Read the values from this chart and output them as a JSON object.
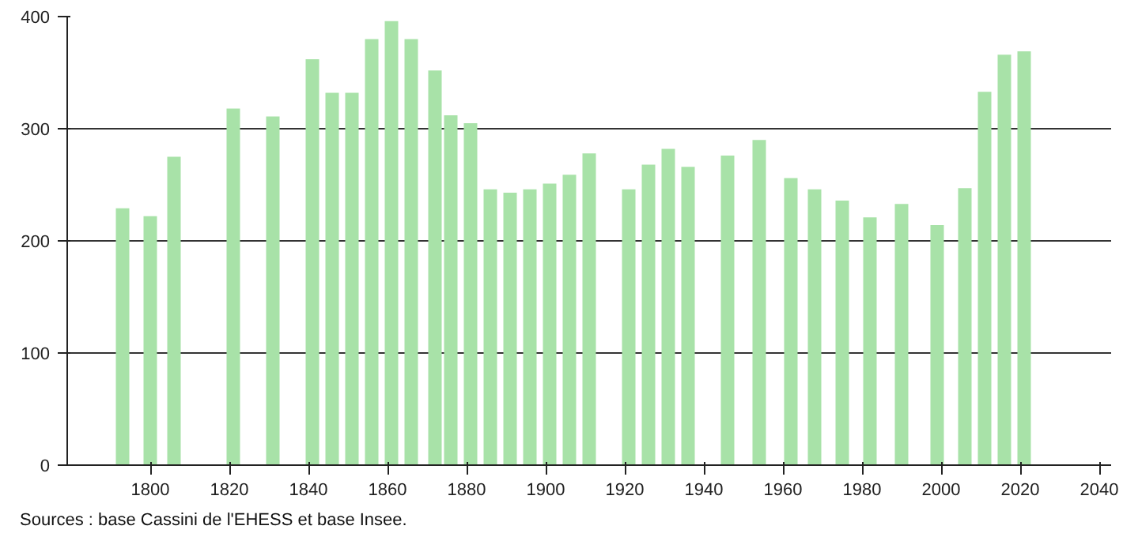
{
  "chart_data": {
    "type": "bar",
    "x": [
      1793,
      1800,
      1806,
      1821,
      1831,
      1841,
      1846,
      1851,
      1856,
      1861,
      1866,
      1872,
      1876,
      1881,
      1886,
      1891,
      1896,
      1901,
      1906,
      1911,
      1921,
      1926,
      1931,
      1936,
      1946,
      1954,
      1962,
      1968,
      1975,
      1982,
      1990,
      1999,
      2006,
      2011,
      2016,
      2021
    ],
    "values": [
      229,
      222,
      275,
      318,
      311,
      362,
      332,
      332,
      380,
      396,
      380,
      352,
      312,
      305,
      246,
      243,
      246,
      251,
      259,
      278,
      246,
      268,
      282,
      266,
      276,
      290,
      256,
      246,
      236,
      221,
      233,
      214,
      247,
      333,
      366,
      369
    ],
    "color": "#a8e2a8",
    "xlim": [
      1779,
      2043
    ],
    "xticks": [
      1800,
      1820,
      1840,
      1860,
      1880,
      1900,
      1920,
      1940,
      1960,
      1980,
      2000,
      2020,
      2040
    ],
    "ylim": [
      0,
      400
    ],
    "yticks": [
      0,
      100,
      200,
      300,
      400
    ],
    "grid": "y",
    "annotations": [
      "Sources : base Cassini de l'EHESS et base Insee."
    ]
  }
}
